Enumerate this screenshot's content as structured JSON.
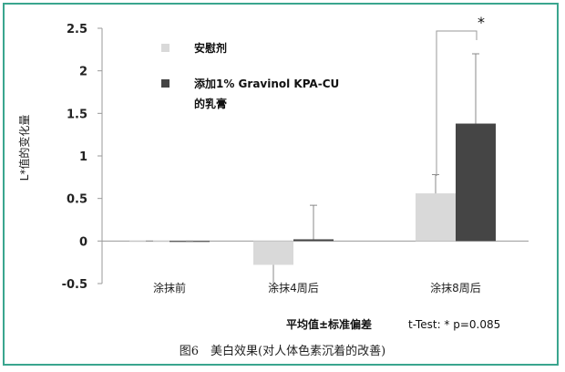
{
  "chart_data": {
    "type": "bar",
    "ylabel": "L*值的变化量",
    "ylim": [
      -0.5,
      2.5
    ],
    "yticks": [
      "2.5",
      "2",
      "1.5",
      "1",
      "0.5",
      "0",
      "-0.5"
    ],
    "ytick_values": [
      2.5,
      2.0,
      1.5,
      1.0,
      0.5,
      0.0,
      -0.5
    ],
    "categories": [
      "涂抹前",
      "涂抹4周后",
      "涂抹8周后"
    ],
    "series": [
      {
        "name": "安慰剂",
        "color": "#d9d9d9",
        "values": [
          0.0,
          -0.28,
          0.56
        ],
        "errors": [
          0.0,
          0.28,
          0.22
        ]
      },
      {
        "name": "添加1% Gravinol KPA-CU\n的乳膏",
        "color": "#454545",
        "values": [
          0.0,
          0.02,
          1.38
        ],
        "errors": [
          0.0,
          0.4,
          0.82
        ]
      }
    ],
    "legend_lines": {
      "placebo": "安慰剂",
      "cream_line1": "添加1% Gravinol KPA-CU",
      "cream_line2": "的乳膏"
    },
    "significance_mark": "*",
    "grid": false,
    "legend_position": "top-left"
  },
  "footer": {
    "stat_label": "平均值±标准偏差",
    "ttest": "t-Test: * p=0.085"
  },
  "caption": "图6　美白效果(对人体色素沉着的改善)"
}
